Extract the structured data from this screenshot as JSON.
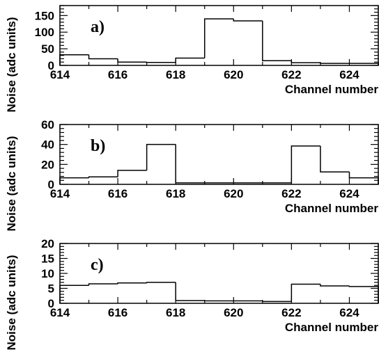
{
  "chart_data": [
    {
      "type": "histogram",
      "panel_label": "a)",
      "xlabel": "Channel number",
      "ylabel": "Noise (adc units)",
      "xlim": [
        614,
        625
      ],
      "ylim": [
        0,
        180
      ],
      "xticks": [
        614,
        616,
        618,
        620,
        622,
        624
      ],
      "yticks": [
        0,
        50,
        100,
        150
      ],
      "bin_edges": [
        614,
        615,
        616,
        617,
        618,
        619,
        620,
        621,
        622,
        623,
        624,
        625
      ],
      "values": [
        32,
        20,
        10,
        9,
        22,
        140,
        134,
        14,
        8,
        6,
        6
      ]
    },
    {
      "type": "histogram",
      "panel_label": "b)",
      "xlabel": "Channel number",
      "ylabel": "Noise (adc units)",
      "xlim": [
        614,
        625
      ],
      "ylim": [
        0,
        60
      ],
      "xticks": [
        614,
        616,
        618,
        620,
        622,
        624
      ],
      "yticks": [
        0,
        20,
        40,
        60
      ],
      "bin_edges": [
        614,
        615,
        616,
        617,
        618,
        619,
        620,
        621,
        622,
        623,
        624,
        625
      ],
      "values": [
        6.5,
        7.5,
        14,
        40,
        1.5,
        1.5,
        1.5,
        1.5,
        38.5,
        12.5,
        6.5
      ]
    },
    {
      "type": "histogram",
      "panel_label": "c)",
      "xlabel": "Channel number",
      "ylabel": "Noise (adc units)",
      "xlim": [
        614,
        625
      ],
      "ylim": [
        0,
        20
      ],
      "xticks": [
        614,
        616,
        618,
        620,
        622,
        624
      ],
      "yticks": [
        0,
        5,
        10,
        15,
        20
      ],
      "bin_edges": [
        614,
        615,
        616,
        617,
        618,
        619,
        620,
        621,
        622,
        623,
        624,
        625
      ],
      "values": [
        6.0,
        6.5,
        6.8,
        7.0,
        0.9,
        0.8,
        0.8,
        0.6,
        6.4,
        5.8,
        5.6
      ]
    }
  ]
}
